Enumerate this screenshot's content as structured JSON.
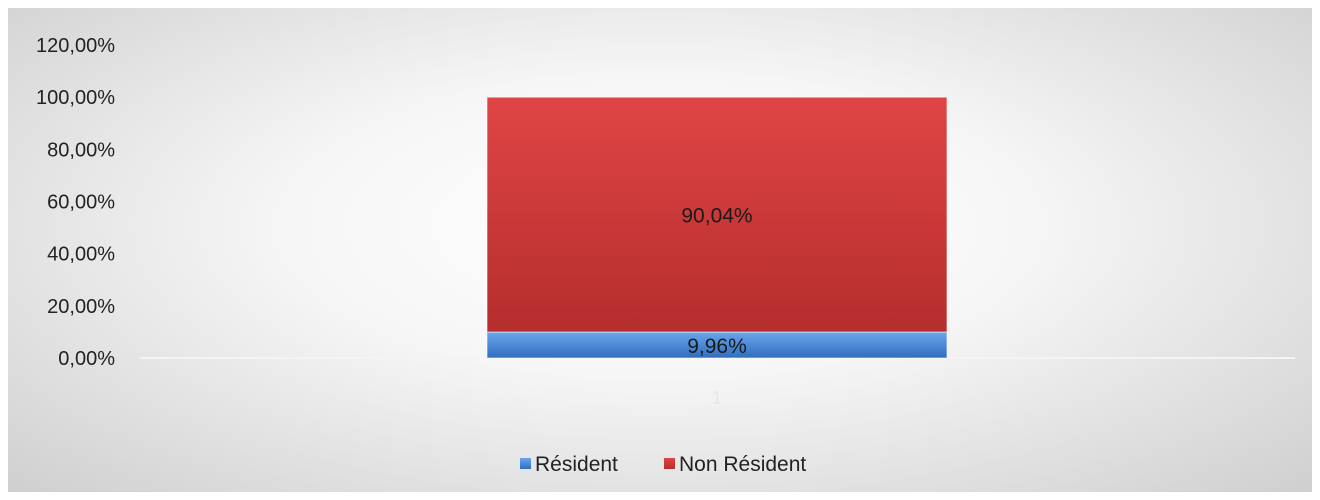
{
  "chart_data": {
    "type": "bar",
    "stacked": true,
    "categories": [
      "1"
    ],
    "series": [
      {
        "name": "Résident",
        "values": [
          9.96
        ],
        "label": "9,96%",
        "color": "#3f7fd0"
      },
      {
        "name": "Non Résident",
        "values": [
          90.04
        ],
        "label": "90,04%",
        "color": "#d23c3c"
      }
    ],
    "ylim": [
      0,
      120
    ],
    "yticks": [
      0,
      20,
      40,
      60,
      80,
      100,
      120
    ],
    "ytick_labels": [
      "0,00%",
      "20,00%",
      "40,00%",
      "60,00%",
      "80,00%",
      "100,00%",
      "120,00%"
    ],
    "grid": false,
    "legend_position": "bottom"
  }
}
